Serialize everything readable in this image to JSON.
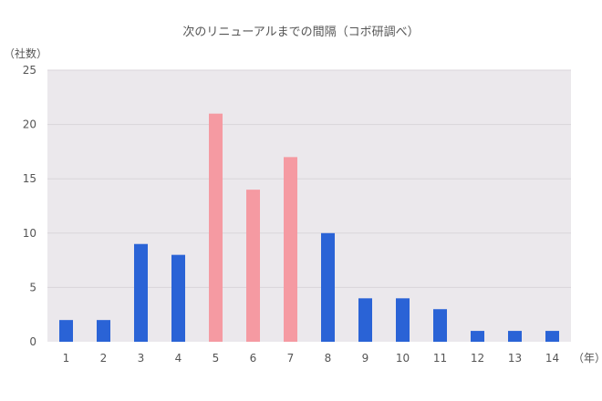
{
  "chart_data": {
    "type": "bar",
    "title": "次のリニューアルまでの間隔（コボ研調べ）",
    "ylabel": "（社数）",
    "xlabel": "（年）",
    "ylim": [
      0,
      25
    ],
    "yticks": [
      0,
      5,
      10,
      15,
      20,
      25
    ],
    "categories": [
      "1",
      "2",
      "3",
      "4",
      "5",
      "6",
      "7",
      "8",
      "9",
      "10",
      "11",
      "12",
      "13",
      "14"
    ],
    "values": [
      2,
      2,
      9,
      8,
      21,
      14,
      17,
      10,
      4,
      4,
      3,
      1,
      1,
      1
    ],
    "highlighted": [
      false,
      false,
      false,
      false,
      true,
      true,
      true,
      false,
      false,
      false,
      false,
      false,
      false,
      false
    ],
    "grid": true,
    "colors": {
      "plot_background": "#ebe8ec",
      "gridline": "#d9d5da",
      "bar": "#2a63d6",
      "bar_highlight": "#f59aa2",
      "text": "#555555"
    }
  }
}
